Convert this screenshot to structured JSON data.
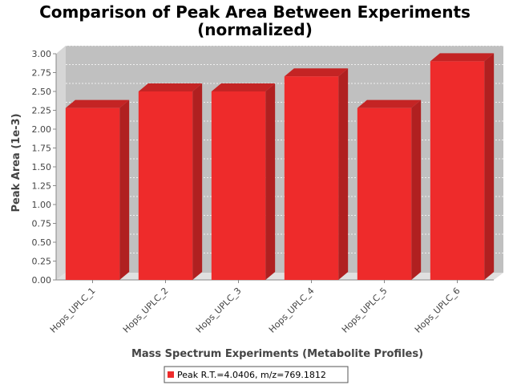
{
  "chart_data": {
    "type": "bar",
    "title_line1": "Comparison of Peak Area Between Experiments",
    "title_line2": "(normalized)",
    "xlabel": "Mass Spectrum Experiments (Metabolite Profiles)",
    "ylabel": "Peak Area (1e-3)",
    "categories": [
      "Hops_UPLC_1",
      "Hops_UPLC_2",
      "Hops_UPLC_3",
      "Hops_UPLC_4",
      "Hops_UPLC_5",
      "Hops_UPLC_6"
    ],
    "series": [
      {
        "name": "Peak R.T.=4.0406, m/z=769.1812",
        "values": [
          2.28,
          2.5,
          2.5,
          2.7,
          2.28,
          2.9
        ]
      }
    ],
    "ylim": [
      0,
      3.0
    ],
    "yticks": [
      "0.00",
      "0.25",
      "0.50",
      "0.75",
      "1.00",
      "1.25",
      "1.50",
      "1.75",
      "2.00",
      "2.25",
      "2.50",
      "2.75",
      "3.00"
    ],
    "grid": true,
    "legend_position": "bottom-center",
    "colors": {
      "bar_front": "#ee2b2b",
      "bar_top": "#c42424",
      "bar_side": "#b02020",
      "plot_back": "#c0c0c0",
      "plot_floor": "#dddddd"
    }
  }
}
